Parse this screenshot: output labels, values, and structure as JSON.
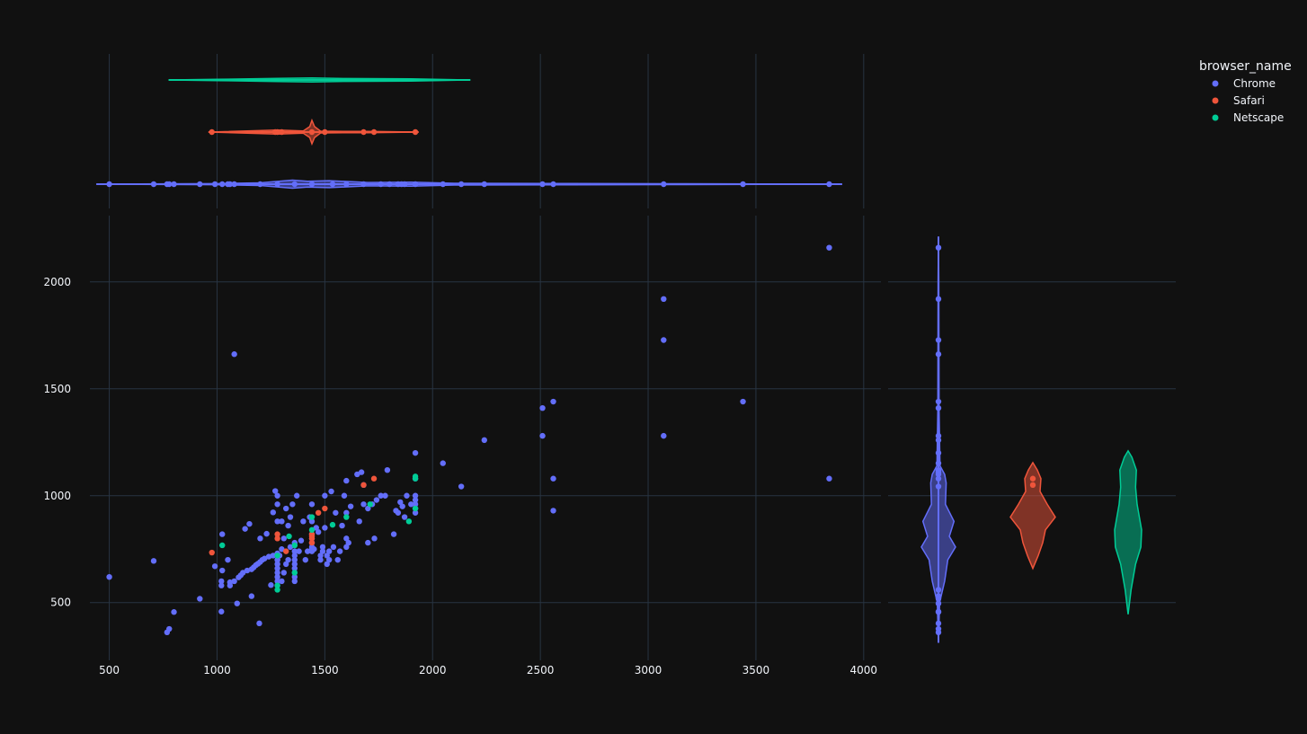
{
  "chart_data": {
    "type": "scatter",
    "marginals": {
      "x": "violin",
      "y": "violin"
    },
    "x_ticks": [
      "500",
      "1000",
      "1500",
      "2000",
      "2500",
      "3000",
      "3500",
      "4000"
    ],
    "x_tick_values": [
      500,
      1000,
      1500,
      2000,
      2500,
      3000,
      3500,
      4000
    ],
    "y_ticks": [
      "500",
      "1000",
      "1500",
      "2000"
    ],
    "y_tick_values": [
      500,
      1000,
      1500,
      2000
    ],
    "xlim": [
      410,
      4080
    ],
    "ylim": [
      230,
      2310
    ],
    "grid": true,
    "legend": {
      "title": "browser_name",
      "placement": "top-right"
    },
    "series": [
      {
        "name": "Chrome",
        "color": "#636efa",
        "points": [
          [
            500,
            620
          ],
          [
            706,
            695
          ],
          [
            768,
            361
          ],
          [
            778,
            377
          ],
          [
            800,
            456
          ],
          [
            920,
            518
          ],
          [
            990,
            670
          ],
          [
            1020,
            458
          ],
          [
            1020,
            600
          ],
          [
            1020,
            580
          ],
          [
            1024,
            650
          ],
          [
            1024,
            820
          ],
          [
            1050,
            700
          ],
          [
            1060,
            595
          ],
          [
            1060,
            580
          ],
          [
            1080,
            600
          ],
          [
            1080,
            1662
          ],
          [
            1093,
            496
          ],
          [
            1100,
            618
          ],
          [
            1110,
            628
          ],
          [
            1120,
            640
          ],
          [
            1130,
            845
          ],
          [
            1140,
            650
          ],
          [
            1150,
            868
          ],
          [
            1160,
            530
          ],
          [
            1160,
            656
          ],
          [
            1170,
            665
          ],
          [
            1180,
            675
          ],
          [
            1190,
            682
          ],
          [
            1196,
            403
          ],
          [
            1200,
            800
          ],
          [
            1200,
            690
          ],
          [
            1210,
            700
          ],
          [
            1220,
            706
          ],
          [
            1230,
            822
          ],
          [
            1240,
            715
          ],
          [
            1250,
            582
          ],
          [
            1260,
            922
          ],
          [
            1260,
            720
          ],
          [
            1270,
            1022
          ],
          [
            1280,
            700
          ],
          [
            1280,
            700
          ],
          [
            1280,
            680
          ],
          [
            1280,
            660
          ],
          [
            1280,
            640
          ],
          [
            1280,
            620
          ],
          [
            1280,
            600
          ],
          [
            1280,
            580
          ],
          [
            1280,
            680
          ],
          [
            1280,
            880
          ],
          [
            1280,
            960
          ],
          [
            1280,
            730
          ],
          [
            1280,
            1000
          ],
          [
            1290,
            720
          ],
          [
            1300,
            600
          ],
          [
            1300,
            750
          ],
          [
            1300,
            880
          ],
          [
            1310,
            640
          ],
          [
            1310,
            800
          ],
          [
            1320,
            680
          ],
          [
            1320,
            940
          ],
          [
            1330,
            700
          ],
          [
            1330,
            860
          ],
          [
            1340,
            760
          ],
          [
            1340,
            900
          ],
          [
            1350,
            960
          ],
          [
            1360,
            600
          ],
          [
            1360,
            620
          ],
          [
            1360,
            640
          ],
          [
            1360,
            660
          ],
          [
            1360,
            680
          ],
          [
            1360,
            700
          ],
          [
            1360,
            720
          ],
          [
            1360,
            740
          ],
          [
            1360,
            768
          ],
          [
            1360,
            780
          ],
          [
            1370,
            1000
          ],
          [
            1380,
            740
          ],
          [
            1390,
            790
          ],
          [
            1400,
            880
          ],
          [
            1410,
            700
          ],
          [
            1420,
            740
          ],
          [
            1430,
            900
          ],
          [
            1440,
            740
          ],
          [
            1440,
            750
          ],
          [
            1440,
            760
          ],
          [
            1440,
            780
          ],
          [
            1440,
            800
          ],
          [
            1440,
            820
          ],
          [
            1440,
            880
          ],
          [
            1440,
            960
          ],
          [
            1450,
            750
          ],
          [
            1460,
            850
          ],
          [
            1470,
            830
          ],
          [
            1480,
            700
          ],
          [
            1480,
            720
          ],
          [
            1490,
            740
          ],
          [
            1490,
            760
          ],
          [
            1500,
            1000
          ],
          [
            1500,
            850
          ],
          [
            1510,
            680
          ],
          [
            1510,
            720
          ],
          [
            1520,
            700
          ],
          [
            1520,
            740
          ],
          [
            1530,
            1020
          ],
          [
            1540,
            760
          ],
          [
            1550,
            920
          ],
          [
            1560,
            700
          ],
          [
            1570,
            740
          ],
          [
            1580,
            860
          ],
          [
            1590,
            1000
          ],
          [
            1600,
            760
          ],
          [
            1600,
            800
          ],
          [
            1600,
            920
          ],
          [
            1600,
            1070
          ],
          [
            1610,
            780
          ],
          [
            1620,
            950
          ],
          [
            1650,
            1100
          ],
          [
            1660,
            880
          ],
          [
            1670,
            1110
          ],
          [
            1680,
            960
          ],
          [
            1680,
            1050
          ],
          [
            1700,
            780
          ],
          [
            1700,
            940
          ],
          [
            1720,
            960
          ],
          [
            1730,
            800
          ],
          [
            1740,
            980
          ],
          [
            1760,
            1000
          ],
          [
            1780,
            1000
          ],
          [
            1790,
            1120
          ],
          [
            1820,
            820
          ],
          [
            1830,
            930
          ],
          [
            1840,
            920
          ],
          [
            1850,
            970
          ],
          [
            1860,
            950
          ],
          [
            1870,
            900
          ],
          [
            1880,
            1000
          ],
          [
            1900,
            960
          ],
          [
            1920,
            920
          ],
          [
            1920,
            940
          ],
          [
            1920,
            960
          ],
          [
            1920,
            980
          ],
          [
            1920,
            1000
          ],
          [
            1920,
            1080
          ],
          [
            1920,
            1200
          ],
          [
            2048,
            1152
          ],
          [
            2133,
            1043
          ],
          [
            2240,
            1260
          ],
          [
            2510,
            1280
          ],
          [
            2510,
            1410
          ],
          [
            2560,
            930
          ],
          [
            2560,
            1080
          ],
          [
            2560,
            1440
          ],
          [
            3072,
            1280
          ],
          [
            3072,
            1728
          ],
          [
            3072,
            1920
          ],
          [
            3440,
            1440
          ],
          [
            3840,
            1080
          ],
          [
            3840,
            2160
          ]
        ]
      },
      {
        "name": "Safari",
        "color": "#ef553b",
        "points": [
          [
            976,
            734
          ],
          [
            1280,
            800
          ],
          [
            1280,
            820
          ],
          [
            1320,
            740
          ],
          [
            1440,
            780
          ],
          [
            1440,
            800
          ],
          [
            1440,
            810
          ],
          [
            1440,
            820
          ],
          [
            1470,
            920
          ],
          [
            1500,
            940
          ],
          [
            1680,
            1050
          ],
          [
            1728,
            1080
          ]
        ]
      },
      {
        "name": "Netscape",
        "color": "#00cc96",
        "points": [
          [
            1024,
            768
          ],
          [
            1280,
            560
          ],
          [
            1280,
            580
          ],
          [
            1280,
            720
          ],
          [
            1334,
            810
          ],
          [
            1360,
            640
          ],
          [
            1360,
            768
          ],
          [
            1440,
            840
          ],
          [
            1440,
            900
          ],
          [
            1536,
            864
          ],
          [
            1600,
            900
          ],
          [
            1710,
            960
          ],
          [
            1890,
            880
          ],
          [
            1920,
            940
          ],
          [
            1920,
            1080
          ],
          [
            1920,
            1090
          ]
        ]
      }
    ],
    "marginal_x_violins": [
      {
        "name": "Chrome",
        "range": [
          440,
          3900
        ],
        "profile": [
          [
            440,
            0
          ],
          [
            1000,
            0.5
          ],
          [
            1200,
            1.2
          ],
          [
            1350,
            3.5
          ],
          [
            1420,
            2.5
          ],
          [
            1520,
            3.0
          ],
          [
            1700,
            1.5
          ],
          [
            1900,
            1.8
          ],
          [
            2100,
            0.8
          ],
          [
            2600,
            0.6
          ],
          [
            3100,
            0.4
          ],
          [
            3900,
            0
          ]
        ],
        "points": [
          500,
          706,
          768,
          778,
          800,
          920,
          990,
          1024,
          1050,
          1060,
          1080,
          1200,
          1280,
          1360,
          1440,
          1536,
          1600,
          1680,
          1760,
          1800,
          1840,
          1856,
          1870,
          1920,
          2048,
          2133,
          2240,
          2510,
          2560,
          3072,
          3440,
          3840
        ]
      },
      {
        "name": "Safari",
        "range": [
          960,
          1935
        ],
        "profile": [
          [
            960,
            0
          ],
          [
            1280,
            2.5
          ],
          [
            1400,
            1.5
          ],
          [
            1430,
            7
          ],
          [
            1440,
            15
          ],
          [
            1452,
            7
          ],
          [
            1480,
            1.2
          ],
          [
            1600,
            0.8
          ],
          [
            1700,
            0.8
          ],
          [
            1935,
            0
          ]
        ],
        "points": [
          976,
          1270,
          1280,
          1300,
          1440,
          1500,
          1680,
          1728,
          1920
        ]
      },
      {
        "name": "Netscape",
        "range": [
          775,
          2175
        ],
        "profile": [
          [
            775,
            0
          ],
          [
            1000,
            0.8
          ],
          [
            1280,
            2.0
          ],
          [
            1440,
            2.5
          ],
          [
            1600,
            1.8
          ],
          [
            1900,
            1.5
          ],
          [
            2175,
            0
          ]
        ],
        "points": []
      }
    ],
    "marginal_y_violins": [
      {
        "name": "Chrome",
        "range": [
          312,
          2212
        ],
        "profile": [
          [
            312,
            0
          ],
          [
            500,
            1.5
          ],
          [
            600,
            8
          ],
          [
            700,
            12
          ],
          [
            760,
            22
          ],
          [
            810,
            14
          ],
          [
            880,
            20
          ],
          [
            960,
            9
          ],
          [
            1060,
            10
          ],
          [
            1100,
            8
          ],
          [
            1140,
            2
          ],
          [
            1400,
            0.8
          ],
          [
            2000,
            0.5
          ],
          [
            2212,
            0
          ]
        ],
        "points": [
          361,
          377,
          403,
          456,
          458,
          496,
          518,
          530,
          560,
          1043,
          1080,
          1100,
          1110,
          1120,
          1152,
          1200,
          1260,
          1280,
          1410,
          1440,
          1662,
          1728,
          1920,
          2160
        ]
      },
      {
        "name": "Safari",
        "range": [
          660,
          1155
        ],
        "profile": [
          [
            660,
            0
          ],
          [
            720,
            6
          ],
          [
            780,
            11
          ],
          [
            840,
            14
          ],
          [
            900,
            25
          ],
          [
            960,
            16
          ],
          [
            1020,
            8
          ],
          [
            1080,
            9
          ],
          [
            1120,
            5
          ],
          [
            1155,
            0
          ]
        ],
        "points": [
          1050,
          1080
        ]
      },
      {
        "name": "Netscape",
        "range": [
          445,
          1210
        ],
        "profile": [
          [
            445,
            0
          ],
          [
            560,
            4
          ],
          [
            680,
            10
          ],
          [
            760,
            17
          ],
          [
            840,
            18
          ],
          [
            960,
            12
          ],
          [
            1040,
            10
          ],
          [
            1120,
            11
          ],
          [
            1180,
            5
          ],
          [
            1210,
            0
          ]
        ],
        "points": []
      }
    ]
  }
}
